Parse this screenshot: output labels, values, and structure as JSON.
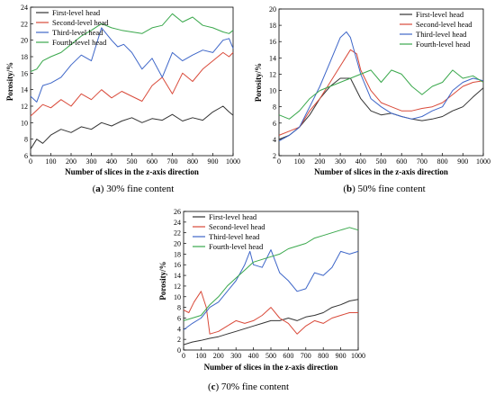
{
  "chart_data": [
    {
      "id": "a",
      "type": "line",
      "caption_letter": "(a)",
      "caption_text": "30% fine content",
      "xlabel": "Number of slices in the z-axis direction",
      "ylabel": "Porosity/%",
      "xlim": [
        0,
        1000
      ],
      "ylim": [
        6,
        24
      ],
      "xticks": [
        0,
        100,
        200,
        300,
        400,
        500,
        600,
        700,
        800,
        900,
        1000
      ],
      "yticks": [
        6,
        8,
        10,
        12,
        14,
        16,
        18,
        20,
        22,
        24
      ],
      "legend_position": "top-left",
      "series": [
        {
          "name": "First-level head",
          "color": "#333333",
          "x": [
            0,
            30,
            60,
            100,
            150,
            200,
            250,
            300,
            350,
            400,
            450,
            500,
            550,
            600,
            650,
            700,
            750,
            800,
            850,
            900,
            950,
            980,
            1000
          ],
          "y": [
            6.8,
            8.0,
            7.5,
            8.5,
            9.2,
            8.8,
            9.5,
            9.2,
            10.0,
            9.6,
            10.2,
            10.6,
            10.0,
            10.5,
            10.3,
            11.0,
            10.2,
            10.6,
            10.3,
            11.3,
            12.0,
            11.3,
            10.9
          ]
        },
        {
          "name": "Second-level head",
          "color": "#d94a3a",
          "x": [
            0,
            30,
            60,
            100,
            150,
            200,
            250,
            300,
            350,
            400,
            450,
            500,
            550,
            600,
            650,
            700,
            750,
            800,
            850,
            900,
            950,
            980,
            1000
          ],
          "y": [
            10.8,
            11.5,
            12.2,
            11.8,
            12.8,
            12.0,
            13.5,
            12.8,
            14.0,
            13.0,
            13.8,
            13.2,
            12.6,
            14.5,
            15.5,
            13.5,
            16.0,
            15.0,
            16.5,
            17.5,
            18.5,
            18.0,
            18.5
          ]
        },
        {
          "name": "Third-level head",
          "color": "#3e66c8",
          "x": [
            0,
            30,
            60,
            100,
            150,
            200,
            250,
            300,
            350,
            400,
            430,
            460,
            500,
            550,
            600,
            650,
            700,
            750,
            800,
            850,
            900,
            950,
            980,
            1000
          ],
          "y": [
            13.2,
            12.5,
            14.5,
            14.8,
            15.5,
            17.0,
            18.2,
            17.5,
            21.5,
            20.0,
            19.2,
            19.5,
            18.5,
            16.5,
            17.8,
            15.5,
            18.5,
            17.5,
            18.2,
            18.8,
            18.5,
            20.0,
            20.2,
            19.0
          ]
        },
        {
          "name": "Fourth-level head",
          "color": "#3aa84c",
          "x": [
            0,
            30,
            60,
            100,
            150,
            200,
            250,
            300,
            350,
            400,
            450,
            500,
            550,
            600,
            650,
            700,
            750,
            800,
            850,
            900,
            950,
            980,
            1000
          ],
          "y": [
            16.2,
            16.5,
            17.5,
            18.0,
            18.5,
            19.5,
            20.5,
            21.2,
            22.0,
            21.5,
            21.2,
            21.0,
            20.8,
            21.5,
            21.8,
            23.2,
            22.2,
            22.8,
            21.8,
            21.5,
            21.0,
            20.8,
            21.2
          ]
        }
      ]
    },
    {
      "id": "b",
      "type": "line",
      "caption_letter": "(b)",
      "caption_text": "50% fine content",
      "xlabel": "Number of slices in the z-axis direction",
      "ylabel": "Porosity/%",
      "xlim": [
        0,
        1000
      ],
      "ylim": [
        2,
        20
      ],
      "xticks": [
        0,
        100,
        200,
        300,
        400,
        500,
        600,
        700,
        800,
        900,
        1000
      ],
      "yticks": [
        2,
        4,
        6,
        8,
        10,
        12,
        14,
        16,
        18,
        20
      ],
      "legend_position": "top-right",
      "series": [
        {
          "name": "First-level head",
          "color": "#333333",
          "x": [
            0,
            50,
            100,
            150,
            200,
            250,
            300,
            350,
            400,
            450,
            500,
            550,
            600,
            650,
            700,
            750,
            800,
            850,
            900,
            950,
            1000
          ],
          "y": [
            4.0,
            4.5,
            5.5,
            7.0,
            9.0,
            10.5,
            11.5,
            11.5,
            9.0,
            7.5,
            7.0,
            7.2,
            6.8,
            6.5,
            6.3,
            6.5,
            6.8,
            7.5,
            8.0,
            9.2,
            10.3
          ]
        },
        {
          "name": "Second-level head",
          "color": "#d94a3a",
          "x": [
            0,
            50,
            100,
            150,
            200,
            250,
            300,
            350,
            380,
            400,
            450,
            500,
            550,
            600,
            650,
            700,
            750,
            800,
            850,
            900,
            950,
            1000
          ],
          "y": [
            4.5,
            5.0,
            5.5,
            7.5,
            9.0,
            11.0,
            13.0,
            15.0,
            14.5,
            12.5,
            10.0,
            8.5,
            8.0,
            7.5,
            7.5,
            7.8,
            8.0,
            8.5,
            9.5,
            10.5,
            11.0,
            11.2
          ]
        },
        {
          "name": "Third-level head",
          "color": "#3e66c8",
          "x": [
            0,
            50,
            100,
            150,
            200,
            250,
            300,
            330,
            350,
            400,
            450,
            500,
            550,
            600,
            650,
            700,
            750,
            800,
            850,
            900,
            950,
            1000
          ],
          "y": [
            3.8,
            4.5,
            5.5,
            8.0,
            10.5,
            13.5,
            16.5,
            17.2,
            16.5,
            12.0,
            9.0,
            8.0,
            7.2,
            6.8,
            6.5,
            6.8,
            7.5,
            8.0,
            10.0,
            11.0,
            11.5,
            11.2
          ]
        },
        {
          "name": "Fourth-level head",
          "color": "#3aa84c",
          "x": [
            0,
            50,
            100,
            150,
            200,
            250,
            300,
            350,
            400,
            450,
            500,
            550,
            600,
            650,
            700,
            750,
            800,
            850,
            900,
            950,
            1000
          ],
          "y": [
            7.0,
            6.5,
            7.5,
            9.0,
            10.0,
            10.5,
            11.0,
            11.5,
            12.0,
            12.5,
            11.0,
            12.5,
            12.0,
            10.5,
            9.5,
            10.5,
            11.0,
            12.5,
            11.5,
            11.8,
            11.0
          ]
        }
      ]
    },
    {
      "id": "c",
      "type": "line",
      "caption_letter": "(c)",
      "caption_text": "70% fine content",
      "xlabel": "Number of slices in the z-axis direction",
      "ylabel": "Porosity/%",
      "xlim": [
        0,
        1000
      ],
      "ylim": [
        0,
        26
      ],
      "xticks": [
        0,
        100,
        200,
        300,
        400,
        500,
        600,
        700,
        800,
        900,
        1000
      ],
      "yticks": [
        0,
        2,
        4,
        6,
        8,
        10,
        12,
        14,
        16,
        18,
        20,
        22,
        24,
        26
      ],
      "legend_position": "top-left",
      "series": [
        {
          "name": "First-level head",
          "color": "#333333",
          "x": [
            0,
            50,
            100,
            150,
            200,
            250,
            300,
            350,
            400,
            450,
            500,
            550,
            600,
            650,
            700,
            750,
            800,
            850,
            900,
            950,
            1000
          ],
          "y": [
            1.0,
            1.5,
            1.8,
            2.2,
            2.5,
            3.0,
            3.5,
            4.0,
            4.5,
            5.0,
            5.5,
            5.5,
            6.0,
            5.5,
            6.2,
            6.5,
            7.0,
            8.0,
            8.5,
            9.2,
            9.5
          ]
        },
        {
          "name": "Second-level head",
          "color": "#d94a3a",
          "x": [
            0,
            30,
            60,
            100,
            130,
            150,
            200,
            250,
            300,
            350,
            400,
            450,
            500,
            550,
            600,
            650,
            700,
            750,
            800,
            850,
            900,
            950,
            1000
          ],
          "y": [
            7.5,
            7.0,
            9.0,
            11.0,
            8.0,
            3.0,
            3.5,
            4.5,
            5.5,
            5.0,
            5.5,
            6.5,
            8.0,
            6.0,
            5.0,
            3.0,
            4.5,
            5.5,
            5.0,
            6.0,
            6.5,
            7.0,
            7.0
          ]
        },
        {
          "name": "Third-level head",
          "color": "#3e66c8",
          "x": [
            0,
            50,
            100,
            150,
            200,
            250,
            300,
            350,
            380,
            400,
            450,
            500,
            550,
            600,
            650,
            700,
            750,
            800,
            850,
            900,
            950,
            1000
          ],
          "y": [
            3.8,
            5.0,
            6.0,
            8.0,
            9.0,
            11.0,
            13.0,
            16.0,
            18.5,
            16.0,
            15.5,
            18.8,
            14.5,
            13.0,
            11.0,
            11.5,
            14.5,
            14.0,
            15.5,
            18.5,
            18.0,
            18.5
          ]
        },
        {
          "name": "Fourth-level head",
          "color": "#3aa84c",
          "x": [
            0,
            50,
            100,
            150,
            200,
            250,
            300,
            350,
            400,
            450,
            500,
            550,
            600,
            650,
            700,
            750,
            800,
            850,
            900,
            950,
            1000
          ],
          "y": [
            5.5,
            6.0,
            6.5,
            8.5,
            10.0,
            12.0,
            13.5,
            15.0,
            16.5,
            17.0,
            17.5,
            18.0,
            19.0,
            19.5,
            20.0,
            21.0,
            21.5,
            22.0,
            22.5,
            23.0,
            22.5
          ]
        }
      ]
    }
  ]
}
